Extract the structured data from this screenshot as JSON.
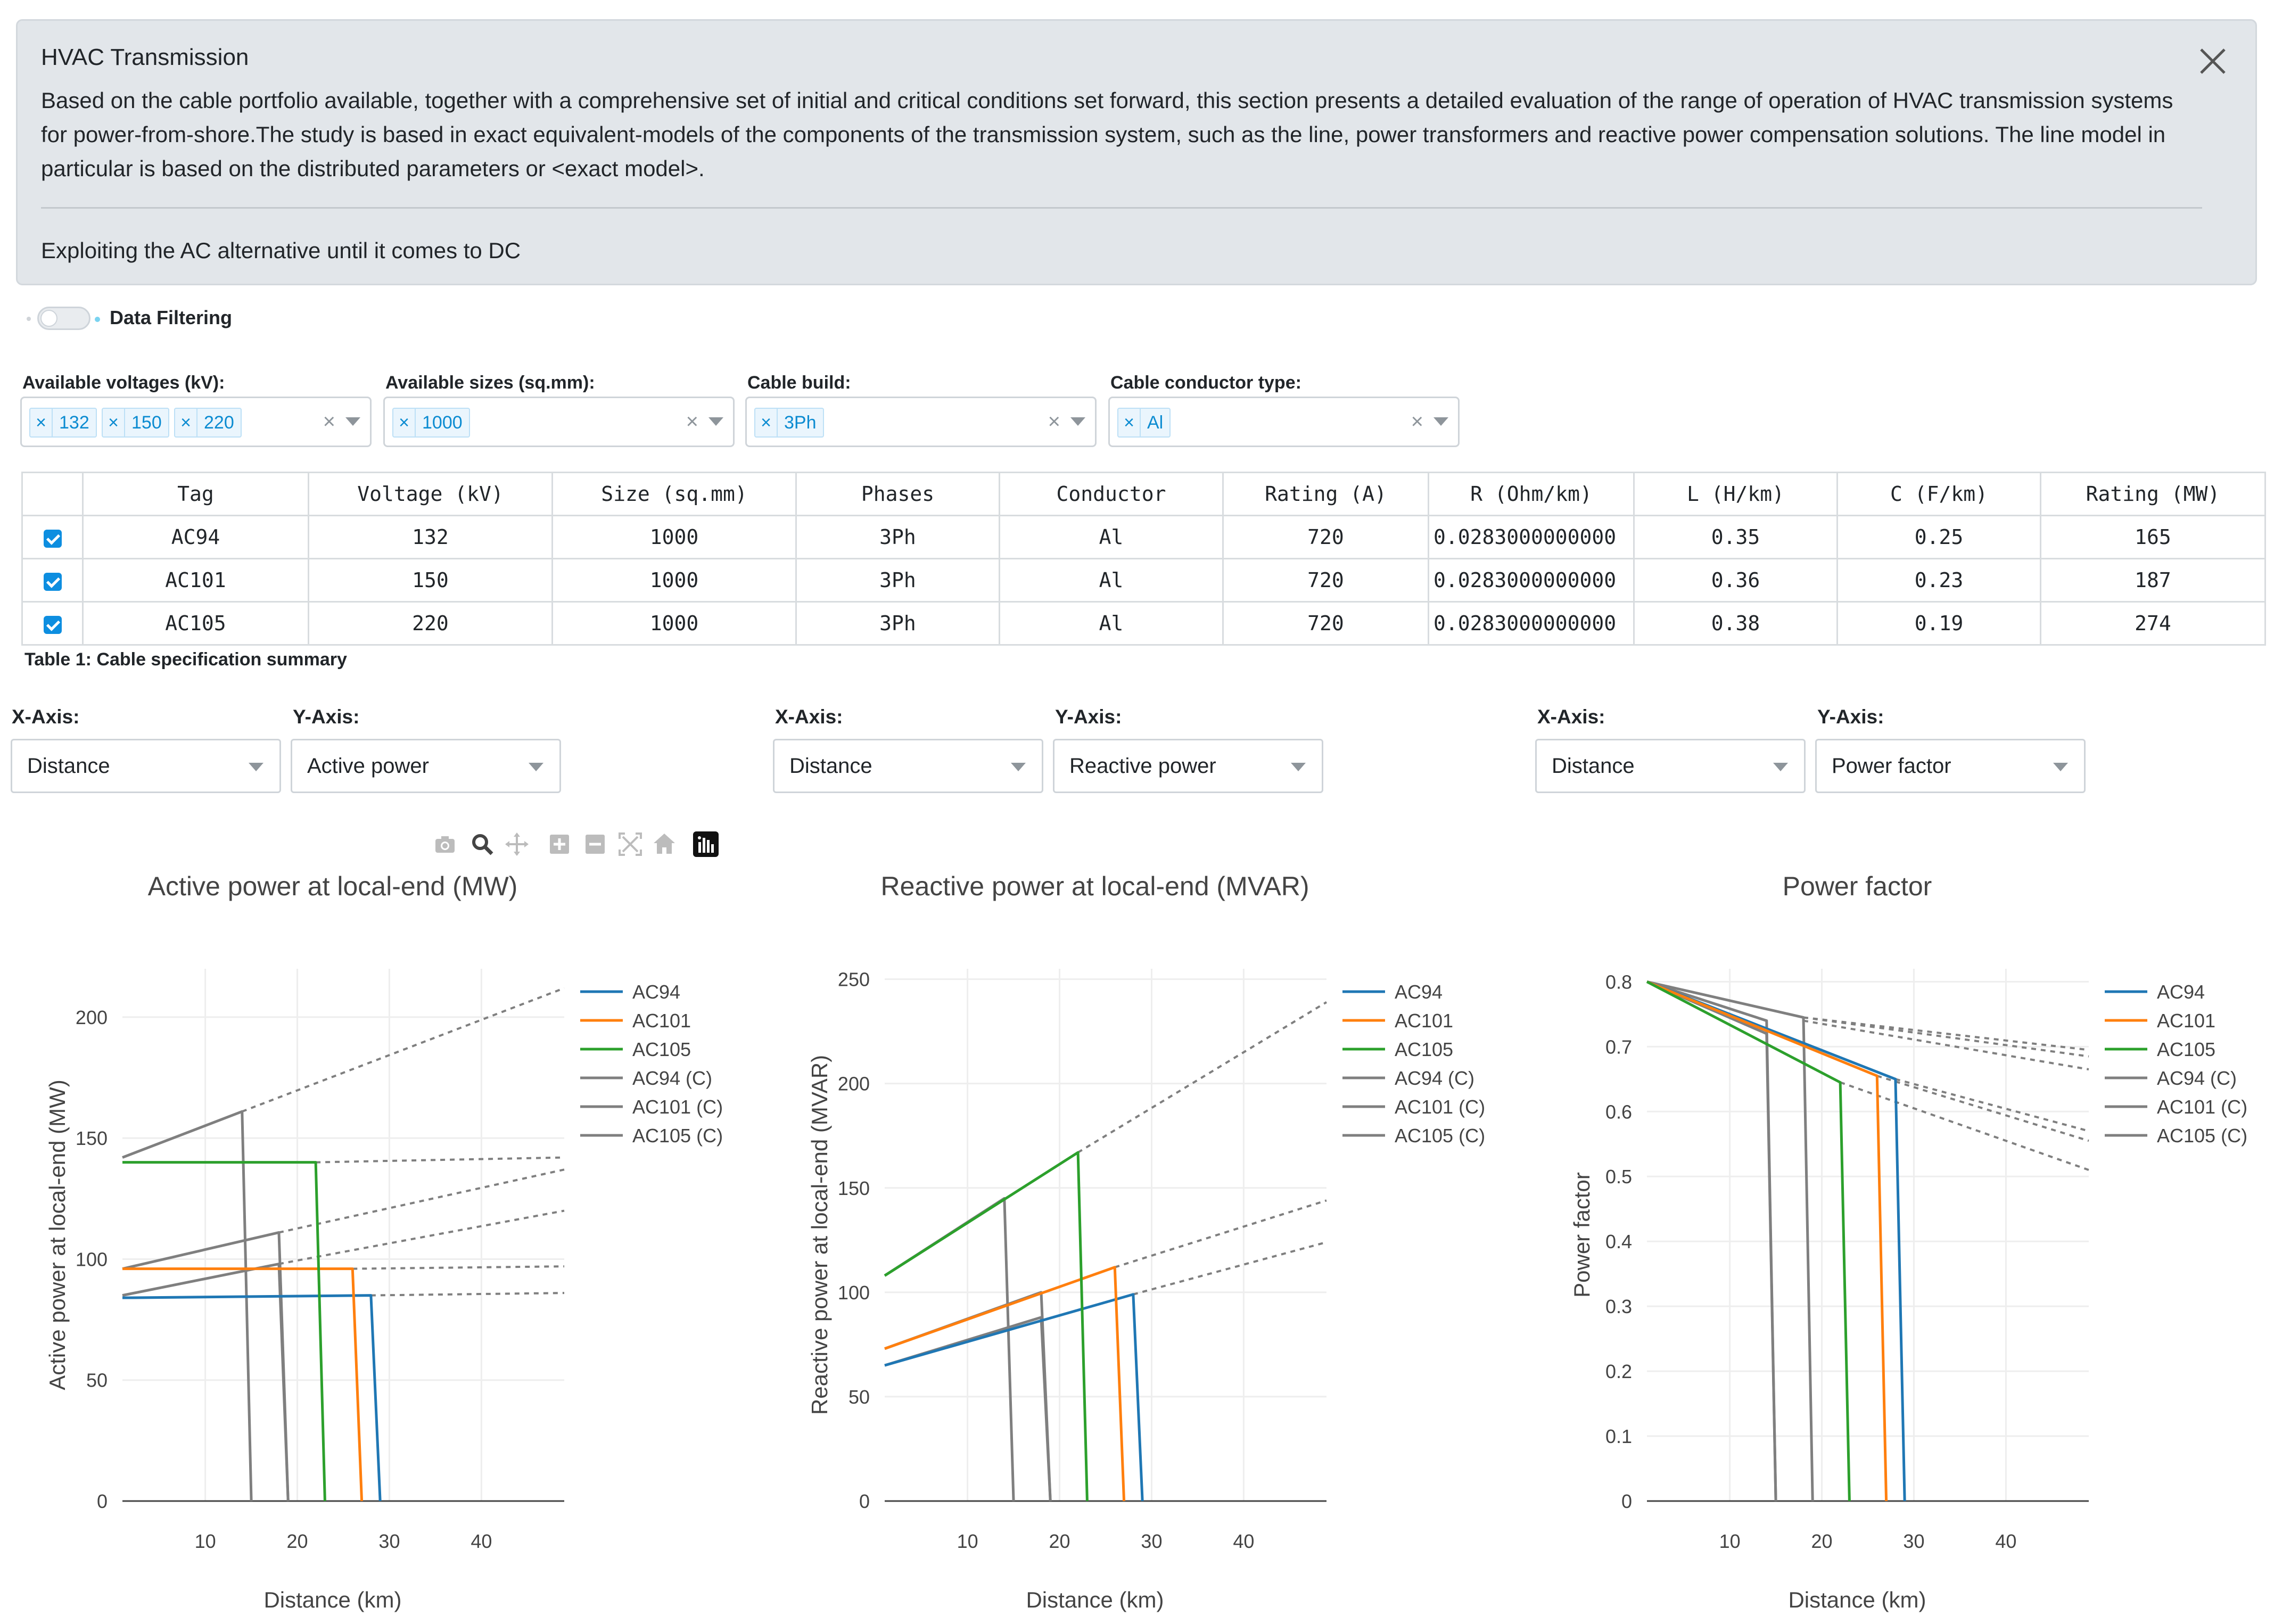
{
  "alert": {
    "title": "HVAC Transmission",
    "description": "Based on the cable portfolio available, together with a comprehensive set of initial and critical conditions set forward, this section presents a detailed evaluation of the range of operation of HVAC transmission systems for power-from-shore.The study is based in exact equivalent-models of the components of the transmission system, such as the line, power transformers and reactive power compensation solutions. The line model in particular is based on the distributed parameters or <exact model>.",
    "footer": "Exploiting the AC alternative until it comes to DC"
  },
  "toggle": {
    "label": "Data Filtering"
  },
  "filters": [
    {
      "label": "Available voltages (kV):",
      "chips": [
        "132",
        "150",
        "220"
      ]
    },
    {
      "label": "Available sizes (sq.mm):",
      "chips": [
        "1000"
      ]
    },
    {
      "label": "Cable build:",
      "chips": [
        "3Ph"
      ]
    },
    {
      "label": "Cable conductor type:",
      "chips": [
        "Al"
      ]
    }
  ],
  "clear_glyph": "×",
  "table": {
    "headers": [
      "Tag",
      "Voltage (kV)",
      "Size (sq.mm)",
      "Phases",
      "Conductor",
      "Rating (A)",
      "R (Ohm/km)",
      "L (H/km)",
      "C (F/km)",
      "Rating (MW)"
    ],
    "rows": [
      [
        "AC94",
        "132",
        "1000",
        "3Ph",
        "Al",
        "720",
        "0.0283000000000",
        "0.35",
        "0.25",
        "165"
      ],
      [
        "AC101",
        "150",
        "1000",
        "3Ph",
        "Al",
        "720",
        "0.0283000000000",
        "0.36",
        "0.23",
        "187"
      ],
      [
        "AC105",
        "220",
        "1000",
        "3Ph",
        "Al",
        "720",
        "0.0283000000000",
        "0.38",
        "0.19",
        "274"
      ]
    ],
    "caption": "Table 1: Cable specification summary"
  },
  "axis_controls": [
    {
      "x_label": "X-Axis:",
      "x_value": "Distance",
      "y_label": "Y-Axis:",
      "y_value": "Active power"
    },
    {
      "x_label": "X-Axis:",
      "x_value": "Distance",
      "y_label": "Y-Axis:",
      "y_value": "Reactive power"
    },
    {
      "x_label": "X-Axis:",
      "x_value": "Distance",
      "y_label": "Y-Axis:",
      "y_value": "Power factor"
    }
  ],
  "modebar": [
    "camera-icon",
    "zoom-icon",
    "pan-icon",
    "zoom-in-icon",
    "zoom-out-icon",
    "autoscale-icon",
    "reset-axes-icon",
    "plotly-logo-icon"
  ],
  "colors": {
    "AC94": "#1f77b4",
    "AC101": "#ff7f0e",
    "AC105": "#2ca02c",
    "critical": "#7f7f7f"
  },
  "chart_data": [
    {
      "type": "line",
      "title": "Active power at local-end (MW)",
      "xlabel": "Distance (km)",
      "ylabel": "Active power at local-end (MW)",
      "xlim": [
        1,
        49
      ],
      "ylim": [
        0,
        220
      ],
      "xticks": [
        10,
        20,
        30,
        40
      ],
      "yticks": [
        0,
        50,
        100,
        150,
        200
      ],
      "ytick_labels": [
        "0",
        "50",
        "100",
        "150",
        "200"
      ],
      "legend": [
        "AC94",
        "AC101",
        "AC105",
        "AC94 (C)",
        "AC101 (C)",
        "AC105 (C)"
      ],
      "series": [
        {
          "name": "AC94",
          "color": "#1f77b4",
          "points": [
            [
              1,
              84
            ],
            [
              28,
              85
            ],
            [
              29,
              0
            ]
          ]
        },
        {
          "name": "AC101",
          "color": "#ff7f0e",
          "points": [
            [
              1,
              96
            ],
            [
              26,
              96
            ],
            [
              27,
              0
            ]
          ]
        },
        {
          "name": "AC105",
          "color": "#2ca02c",
          "points": [
            [
              1,
              140
            ],
            [
              22,
              140
            ],
            [
              23,
              0
            ]
          ]
        },
        {
          "name": "AC94 (C)",
          "color": "#7f7f7f",
          "points": [
            [
              1,
              96
            ],
            [
              18,
              111
            ],
            [
              19,
              0
            ]
          ]
        },
        {
          "name": "AC101 (C)",
          "color": "#7f7f7f",
          "points": [
            [
              1,
              85
            ],
            [
              18,
              98
            ],
            [
              19,
              0
            ]
          ]
        },
        {
          "name": "AC105 (C)",
          "color": "#7f7f7f",
          "points": [
            [
              1,
              142
            ],
            [
              14,
              161
            ],
            [
              15,
              0
            ]
          ]
        }
      ],
      "dashed": [
        [
          [
            14,
            161
          ],
          [
            49,
            212
          ]
        ],
        [
          [
            22,
            140
          ],
          [
            49,
            142
          ]
        ],
        [
          [
            18,
            111
          ],
          [
            49,
            137
          ]
        ],
        [
          [
            18,
            98
          ],
          [
            49,
            120
          ]
        ],
        [
          [
            26,
            96
          ],
          [
            49,
            97
          ]
        ],
        [
          [
            28,
            85
          ],
          [
            49,
            86
          ]
        ]
      ]
    },
    {
      "type": "line",
      "title": "Reactive power at local-end (MVAR)",
      "xlabel": "Distance (km)",
      "ylabel": "Reactive power at local-end (MVAR)",
      "xlim": [
        1,
        49
      ],
      "ylim": [
        0,
        255
      ],
      "xticks": [
        10,
        20,
        30,
        40
      ],
      "yticks": [
        0,
        50,
        100,
        150,
        200,
        250
      ],
      "ytick_labels": [
        "0",
        "50",
        "100",
        "150",
        "200",
        "250"
      ],
      "legend": [
        "AC94",
        "AC101",
        "AC105",
        "AC94 (C)",
        "AC101 (C)",
        "AC105 (C)"
      ],
      "series": [
        {
          "name": "AC94",
          "color": "#1f77b4",
          "points": [
            [
              1,
              65
            ],
            [
              28,
              99
            ],
            [
              29,
              0
            ]
          ]
        },
        {
          "name": "AC101",
          "color": "#ff7f0e",
          "points": [
            [
              1,
              73
            ],
            [
              26,
              112
            ],
            [
              27,
              0
            ]
          ]
        },
        {
          "name": "AC105",
          "color": "#2ca02c",
          "points": [
            [
              1,
              108
            ],
            [
              22,
              167
            ],
            [
              23,
              0
            ]
          ]
        },
        {
          "name": "AC94 (C)",
          "color": "#7f7f7f",
          "points": [
            [
              1,
              65
            ],
            [
              18,
              88
            ],
            [
              19,
              0
            ]
          ]
        },
        {
          "name": "AC101 (C)",
          "color": "#7f7f7f",
          "points": [
            [
              1,
              73
            ],
            [
              18,
              100
            ],
            [
              19,
              0
            ]
          ]
        },
        {
          "name": "AC105 (C)",
          "color": "#7f7f7f",
          "points": [
            [
              1,
              108
            ],
            [
              14,
              145
            ],
            [
              15,
              0
            ]
          ]
        }
      ],
      "dashed": [
        [
          [
            22,
            167
          ],
          [
            49,
            239
          ]
        ],
        [
          [
            26,
            112
          ],
          [
            49,
            144
          ]
        ],
        [
          [
            28,
            99
          ],
          [
            49,
            124
          ]
        ]
      ]
    },
    {
      "type": "line",
      "title": "Power factor",
      "xlabel": "Distance (km)",
      "ylabel": "Power factor",
      "xlim": [
        1,
        49
      ],
      "ylim": [
        0,
        0.82
      ],
      "xticks": [
        10,
        20,
        30,
        40
      ],
      "yticks": [
        0,
        0.1,
        0.2,
        0.3,
        0.4,
        0.5,
        0.6,
        0.7,
        0.8
      ],
      "ytick_labels": [
        "0",
        "0.1",
        "0.2",
        "0.3",
        "0.4",
        "0.5",
        "0.6",
        "0.7",
        "0.8"
      ],
      "legend": [
        "AC94",
        "AC101",
        "AC105",
        "AC94 (C)",
        "AC101 (C)",
        "AC105 (C)"
      ],
      "series": [
        {
          "name": "AC94",
          "color": "#1f77b4",
          "points": [
            [
              1,
              0.8
            ],
            [
              28,
              0.65
            ],
            [
              29,
              0
            ]
          ]
        },
        {
          "name": "AC101",
          "color": "#ff7f0e",
          "points": [
            [
              1,
              0.8
            ],
            [
              26,
              0.655
            ],
            [
              27,
              0
            ]
          ]
        },
        {
          "name": "AC105",
          "color": "#2ca02c",
          "points": [
            [
              1,
              0.8
            ],
            [
              22,
              0.645
            ],
            [
              23,
              0
            ]
          ]
        },
        {
          "name": "AC94 (C)",
          "color": "#7f7f7f",
          "points": [
            [
              1,
              0.8
            ],
            [
              18,
              0.745
            ],
            [
              19,
              0
            ]
          ]
        },
        {
          "name": "AC101 (C)",
          "color": "#7f7f7f",
          "points": [
            [
              1,
              0.8
            ],
            [
              14,
              0.74
            ],
            [
              15,
              0
            ]
          ]
        },
        {
          "name": "AC105 (C)",
          "color": "#7f7f7f",
          "points": [
            [
              1,
              0.8
            ],
            [
              14,
              0.72
            ],
            [
              15,
              0
            ]
          ]
        }
      ],
      "dashed": [
        [
          [
            18,
            0.745
          ],
          [
            49,
            0.695
          ]
        ],
        [
          [
            18,
            0.745
          ],
          [
            49,
            0.685
          ]
        ],
        [
          [
            18,
            0.74
          ],
          [
            49,
            0.665
          ]
        ],
        [
          [
            28,
            0.65
          ],
          [
            49,
            0.57
          ]
        ],
        [
          [
            26,
            0.655
          ],
          [
            49,
            0.555
          ]
        ],
        [
          [
            22,
            0.645
          ],
          [
            49,
            0.51
          ]
        ]
      ]
    }
  ]
}
